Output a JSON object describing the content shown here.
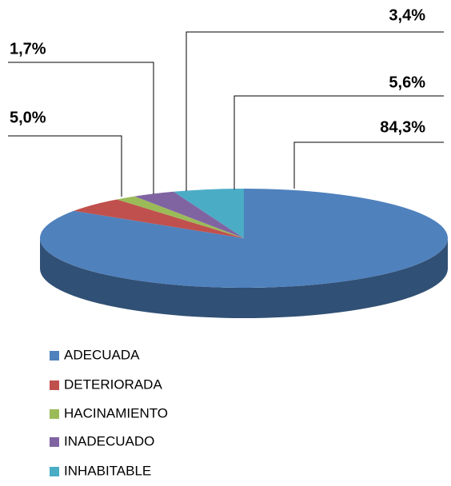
{
  "chart_data": {
    "type": "pie3d",
    "categories": [
      "ADECUADA",
      "DETERIORADA",
      "HACINAMIENTO",
      "INADECUADO",
      "INHABITABLE"
    ],
    "values": [
      84.3,
      5.0,
      1.7,
      3.4,
      5.6
    ],
    "value_labels": [
      "84,3%",
      "5,0%",
      "1,7%",
      "3,4%",
      "5,6%"
    ],
    "colors": [
      "#4f81bd",
      "#c0504d",
      "#9bbb59",
      "#8064a2",
      "#4bacc6"
    ]
  }
}
